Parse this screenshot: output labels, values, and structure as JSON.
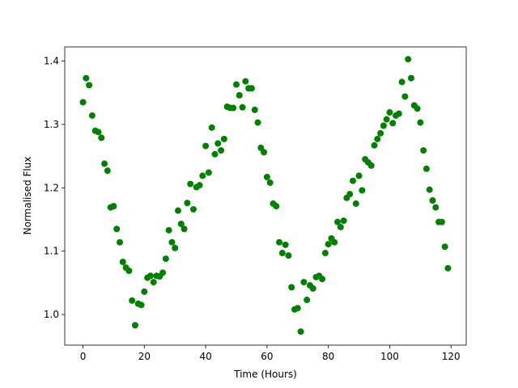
{
  "chart_data": {
    "type": "scatter",
    "xlabel": "Time (Hours)",
    "ylabel": "Normalised Flux",
    "color": "#008000",
    "x": [
      0,
      1,
      2,
      3,
      4,
      5,
      6,
      7,
      8,
      9,
      10,
      11,
      12,
      13,
      14,
      15,
      16,
      17,
      18,
      19,
      20,
      21,
      22,
      23,
      24,
      25,
      26,
      27,
      28,
      29,
      30,
      31,
      32,
      33,
      34,
      35,
      36,
      37,
      38,
      39,
      40,
      41,
      42,
      43,
      44,
      45,
      46,
      47,
      48,
      49,
      50,
      51,
      52,
      53,
      54,
      55,
      56,
      57,
      58,
      59,
      60,
      61,
      62,
      63,
      64,
      65,
      66,
      67,
      68,
      69,
      70,
      71,
      72,
      73,
      74,
      75,
      76,
      77,
      78,
      79,
      80,
      81,
      82,
      83,
      84,
      85,
      86,
      87,
      88,
      89,
      90,
      91,
      92,
      93,
      94,
      95,
      96,
      97,
      98,
      99,
      100,
      101,
      102,
      103,
      104,
      105,
      106,
      107,
      108,
      109,
      110,
      111,
      112,
      113,
      114,
      115,
      116,
      117,
      118,
      119
    ],
    "values": [
      1.335,
      1.373,
      1.362,
      1.314,
      1.29,
      1.288,
      1.279,
      1.238,
      1.227,
      1.169,
      1.171,
      1.135,
      1.114,
      1.083,
      1.074,
      1.069,
      1.022,
      0.983,
      1.017,
      1.015,
      1.036,
      1.058,
      1.061,
      1.051,
      1.061,
      1.06,
      1.066,
      1.088,
      1.133,
      1.114,
      1.105,
      1.164,
      1.143,
      1.135,
      1.176,
      1.206,
      1.166,
      1.201,
      1.204,
      1.219,
      1.266,
      1.224,
      1.295,
      1.253,
      1.27,
      1.259,
      1.277,
      1.328,
      1.326,
      1.326,
      1.363,
      1.346,
      1.327,
      1.368,
      1.357,
      1.357,
      1.323,
      1.303,
      1.263,
      1.256,
      1.217,
      1.208,
      1.175,
      1.171,
      1.114,
      1.097,
      1.11,
      1.093,
      1.043,
      1.008,
      1.01,
      0.973,
      1.051,
      1.023,
      1.046,
      1.041,
      1.059,
      1.061,
      1.056,
      1.097,
      1.111,
      1.12,
      1.114,
      1.146,
      1.138,
      1.148,
      1.184,
      1.19,
      1.211,
      1.175,
      1.219,
      1.196,
      1.245,
      1.24,
      1.235,
      1.267,
      1.277,
      1.286,
      1.298,
      1.308,
      1.319,
      1.302,
      1.314,
      1.317,
      1.367,
      1.344,
      1.403,
      1.373,
      1.33,
      1.325,
      1.303,
      1.259,
      1.23,
      1.197,
      1.18,
      1.169,
      1.146,
      1.146,
      1.107,
      1.073
    ],
    "xlim": [
      -5.95,
      124.95
    ],
    "ylim": [
      0.9516,
      1.4224
    ],
    "xticks": [
      0,
      20,
      40,
      60,
      80,
      100,
      120
    ],
    "yticks": [
      {
        "value": 1,
        "label": "1.0"
      },
      1.1,
      1.2,
      1.3,
      1.4
    ]
  }
}
